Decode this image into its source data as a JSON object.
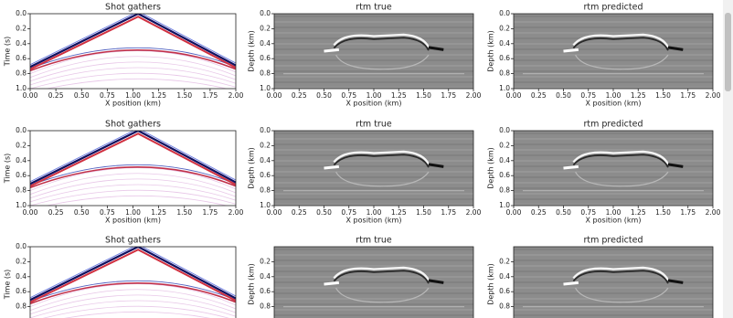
{
  "rows": [
    {
      "panels": [
        {
          "title": "Shot gathers",
          "ylabel": "Time (s)",
          "xlabel": "X position (km)",
          "yticks": [
            "0.0",
            "0.2",
            "0.4",
            "0.6",
            "0.8",
            "1.0"
          ],
          "xticks": [
            "0.00",
            "0.25",
            "0.50",
            "0.75",
            "1.00",
            "1.25",
            "1.50",
            "1.75",
            "2.00"
          ]
        },
        {
          "title": "rtm true",
          "ylabel": "Depth (km)",
          "xlabel": "X position (km)",
          "yticks": [
            "0.0",
            "0.2",
            "0.4",
            "0.6",
            "0.8",
            "1.0"
          ],
          "xticks": [
            "0.00",
            "0.25",
            "0.50",
            "0.75",
            "1.00",
            "1.25",
            "1.50",
            "1.75",
            "2.00"
          ]
        },
        {
          "title": "rtm predicted",
          "ylabel": "Depth (km)",
          "xlabel": "X position (km)",
          "yticks": [
            "0.0",
            "0.2",
            "0.4",
            "0.6",
            "0.8",
            "1.0"
          ],
          "xticks": [
            "0.00",
            "0.25",
            "0.50",
            "0.75",
            "1.00",
            "1.25",
            "1.50",
            "1.75",
            "2.00"
          ]
        }
      ]
    },
    {
      "panels": [
        {
          "title": "Shot gathers",
          "ylabel": "Time (s)",
          "xlabel": "X position (km)",
          "yticks": [
            "0.0",
            "0.2",
            "0.4",
            "0.6",
            "0.8",
            "1.0"
          ],
          "xticks": [
            "0.00",
            "0.25",
            "0.50",
            "0.75",
            "1.00",
            "1.25",
            "1.50",
            "1.75",
            "2.00"
          ]
        },
        {
          "title": "rtm true",
          "ylabel": "Depth (km)",
          "xlabel": "X position (km)",
          "yticks": [
            "0.0",
            "0.2",
            "0.4",
            "0.6",
            "0.8",
            "1.0"
          ],
          "xticks": [
            "0.00",
            "0.25",
            "0.50",
            "0.75",
            "1.00",
            "1.25",
            "1.50",
            "1.75",
            "2.00"
          ]
        },
        {
          "title": "rtm predicted",
          "ylabel": "Depth (km)",
          "xlabel": "X position (km)",
          "yticks": [
            "0.0",
            "0.2",
            "0.4",
            "0.6",
            "0.8",
            "1.0"
          ],
          "xticks": [
            "0.00",
            "0.25",
            "0.50",
            "0.75",
            "1.00",
            "1.25",
            "1.50",
            "1.75",
            "2.00"
          ]
        }
      ]
    },
    {
      "panels": [
        {
          "title": "Shot gathers",
          "ylabel": "Time (s)",
          "yticks": [
            "0.0",
            "0.2",
            "0.4",
            "0.6",
            "0.8"
          ]
        },
        {
          "title": "rtm true",
          "ylabel": "Depth (km)",
          "yticks": [
            "0.2",
            "0.4",
            "0.6",
            "0.8"
          ]
        },
        {
          "title": "rtm predicted",
          "ylabel": "Depth (km)",
          "yticks": [
            "0.2",
            "0.4",
            "0.6",
            "0.8"
          ]
        }
      ]
    }
  ]
}
